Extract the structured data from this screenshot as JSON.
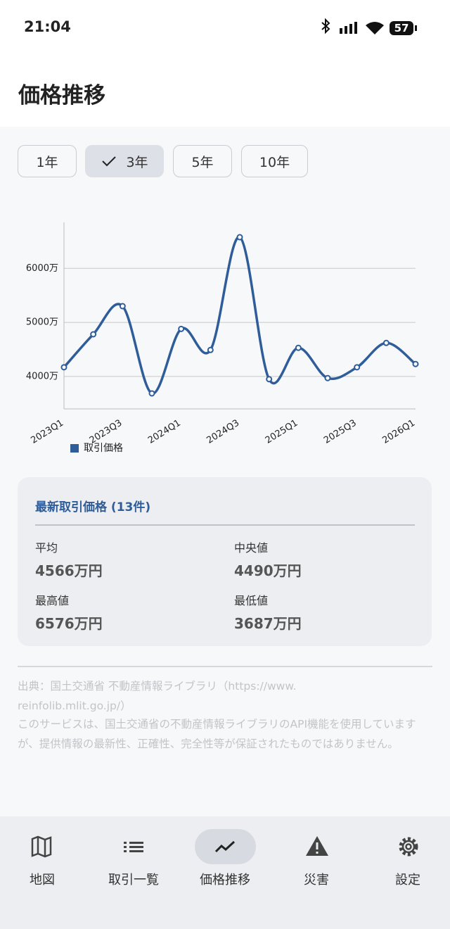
{
  "status": {
    "time": "21:04",
    "battery": "57"
  },
  "header": {
    "title": "価格推移"
  },
  "period_buttons": {
    "items": [
      "1年",
      "3年",
      "5年",
      "10年"
    ],
    "selected": 1
  },
  "chart_data": {
    "type": "line",
    "categories": [
      "2023Q1",
      null,
      "2023Q3",
      null,
      "2024Q1",
      null,
      "2024Q3",
      null,
      "2025Q1",
      null,
      "2025Q3",
      null,
      "2026Q1"
    ],
    "series": [
      {
        "name": "取引価格",
        "color": "#2f5d9a",
        "values": [
          4170,
          4780,
          5300,
          3687,
          4880,
          4490,
          6576,
          3950,
          4530,
          3970,
          4170,
          4620,
          4230
        ]
      }
    ],
    "ylim": [
      3400,
      6850
    ],
    "yticks": [
      {
        "value": 4000,
        "label": "4000万"
      },
      {
        "value": 5000,
        "label": "5000万"
      },
      {
        "value": 6000,
        "label": "6000万"
      }
    ],
    "grid": true,
    "legend": "bottom-left"
  },
  "stats": {
    "title": "最新取引価格 (13件)",
    "items": [
      {
        "label": "平均",
        "value": "4566万円"
      },
      {
        "label": "中央値",
        "value": "4490万円"
      },
      {
        "label": "最高値",
        "value": "6576万円"
      },
      {
        "label": "最低値",
        "value": "3687万円"
      }
    ]
  },
  "notes": [
    "出典：国土交通省 不動産情報ライブラリ（https://www.reinfolib.mlit.go.jp/）",
    "このサービスは、国土交通省の不動産情報ライブラリのAPI機能を使用していますが、提供情報の最新性、正確性、完全性等が保証されたものではありません。"
  ],
  "nav": {
    "items": [
      "地図",
      "取引一覧",
      "価格推移",
      "災害",
      "設定"
    ],
    "selected": 2
  }
}
